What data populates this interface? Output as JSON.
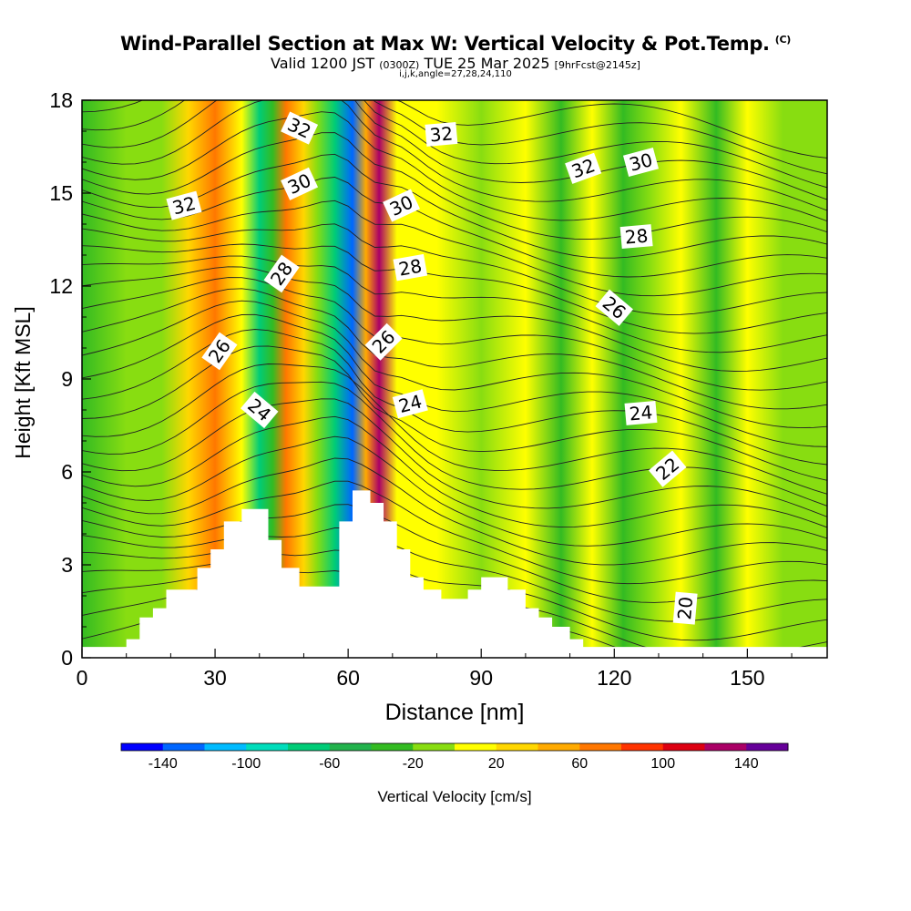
{
  "title": {
    "main": "Wind-Parallel Section at Max W: Vertical Velocity & Pot.Temp.",
    "copyright": "(C)",
    "valid_prefix": "Valid 1200 JST",
    "valid_utc": "(0300Z)",
    "valid_date": "TUE 25 Mar 2025",
    "forecast": "[9hrFcst@2145z]",
    "params": "i,j,k,angle=27,28,24,110"
  },
  "chart_data": {
    "type": "heatmap",
    "xlabel": "Distance [nm]",
    "ylabel": "Height [Kft MSL]",
    "xlim": [
      0,
      168
    ],
    "ylim": [
      0,
      18
    ],
    "x_ticks": [
      0,
      30,
      60,
      90,
      120,
      150
    ],
    "y_ticks": [
      0,
      3,
      6,
      9,
      12,
      15,
      18
    ],
    "colorbar": {
      "label": "Vertical Velocity [cm/s]",
      "ticks": [
        -140,
        -100,
        -60,
        -20,
        20,
        60,
        100,
        140
      ],
      "bounds": [
        -160,
        -140,
        -120,
        -100,
        -80,
        -60,
        -40,
        -20,
        0,
        20,
        40,
        60,
        80,
        100,
        120,
        140,
        160
      ],
      "colors": [
        "#0000ff",
        "#0066ff",
        "#00bbff",
        "#00ddbb",
        "#00cc77",
        "#22b24c",
        "#33bb22",
        "#88dd11",
        "#ffff00",
        "#ffd700",
        "#ffaa00",
        "#ff7700",
        "#ff3300",
        "#dd0011",
        "#aa0066",
        "#660099"
      ]
    },
    "vertical_velocity_bands": [
      {
        "x": 0,
        "w": -30
      },
      {
        "x": 10,
        "w": -10
      },
      {
        "x": 18,
        "w": -20
      },
      {
        "x": 24,
        "w": 30
      },
      {
        "x": 30,
        "w": 60
      },
      {
        "x": 36,
        "w": 10
      },
      {
        "x": 40,
        "w": -80
      },
      {
        "x": 43,
        "w": -30
      },
      {
        "x": 46,
        "w": 70
      },
      {
        "x": 50,
        "w": 20
      },
      {
        "x": 53,
        "w": -10
      },
      {
        "x": 57,
        "w": -70
      },
      {
        "x": 61,
        "w": -130
      },
      {
        "x": 64,
        "w": 40
      },
      {
        "x": 67,
        "w": 130
      },
      {
        "x": 71,
        "w": 10
      },
      {
        "x": 80,
        "w": 10
      },
      {
        "x": 90,
        "w": -10
      },
      {
        "x": 100,
        "w": 5
      },
      {
        "x": 108,
        "w": -25
      },
      {
        "x": 115,
        "w": 15
      },
      {
        "x": 122,
        "w": -30
      },
      {
        "x": 128,
        "w": -15
      },
      {
        "x": 135,
        "w": 5
      },
      {
        "x": 143,
        "w": -25
      },
      {
        "x": 150,
        "w": 15
      },
      {
        "x": 158,
        "w": -5
      },
      {
        "x": 168,
        "w": -10
      }
    ],
    "terrain_profile": [
      {
        "x": 0,
        "h": 0.35
      },
      {
        "x": 10,
        "h": 0.35
      },
      {
        "x": 10,
        "h": 0.6
      },
      {
        "x": 13,
        "h": 0.6
      },
      {
        "x": 13,
        "h": 1.3
      },
      {
        "x": 16,
        "h": 1.3
      },
      {
        "x": 16,
        "h": 1.6
      },
      {
        "x": 19,
        "h": 1.6
      },
      {
        "x": 19,
        "h": 2.2
      },
      {
        "x": 26,
        "h": 2.2
      },
      {
        "x": 26,
        "h": 2.9
      },
      {
        "x": 29,
        "h": 2.9
      },
      {
        "x": 29,
        "h": 3.5
      },
      {
        "x": 32,
        "h": 3.5
      },
      {
        "x": 32,
        "h": 4.4
      },
      {
        "x": 36,
        "h": 4.4
      },
      {
        "x": 36,
        "h": 4.8
      },
      {
        "x": 42,
        "h": 4.8
      },
      {
        "x": 42,
        "h": 3.8
      },
      {
        "x": 45,
        "h": 3.8
      },
      {
        "x": 45,
        "h": 2.9
      },
      {
        "x": 49,
        "h": 2.9
      },
      {
        "x": 49,
        "h": 2.3
      },
      {
        "x": 58,
        "h": 2.3
      },
      {
        "x": 58,
        "h": 4.4
      },
      {
        "x": 61,
        "h": 4.4
      },
      {
        "x": 61,
        "h": 5.4
      },
      {
        "x": 65,
        "h": 5.4
      },
      {
        "x": 65,
        "h": 5.0
      },
      {
        "x": 68,
        "h": 5.0
      },
      {
        "x": 68,
        "h": 4.4
      },
      {
        "x": 71,
        "h": 4.4
      },
      {
        "x": 71,
        "h": 3.5
      },
      {
        "x": 74,
        "h": 3.5
      },
      {
        "x": 74,
        "h": 2.6
      },
      {
        "x": 77,
        "h": 2.6
      },
      {
        "x": 77,
        "h": 2.2
      },
      {
        "x": 81,
        "h": 2.2
      },
      {
        "x": 81,
        "h": 1.9
      },
      {
        "x": 87,
        "h": 1.9
      },
      {
        "x": 87,
        "h": 2.2
      },
      {
        "x": 90,
        "h": 2.2
      },
      {
        "x": 90,
        "h": 2.6
      },
      {
        "x": 96,
        "h": 2.6
      },
      {
        "x": 96,
        "h": 2.2
      },
      {
        "x": 100,
        "h": 2.2
      },
      {
        "x": 100,
        "h": 1.6
      },
      {
        "x": 103,
        "h": 1.6
      },
      {
        "x": 103,
        "h": 1.3
      },
      {
        "x": 106,
        "h": 1.3
      },
      {
        "x": 106,
        "h": 1.0
      },
      {
        "x": 110,
        "h": 1.0
      },
      {
        "x": 110,
        "h": 0.6
      },
      {
        "x": 113,
        "h": 0.6
      },
      {
        "x": 113,
        "h": 0.35
      },
      {
        "x": 168,
        "h": 0.35
      }
    ],
    "potential_temperature_labels": [
      {
        "value": "32",
        "x": 49,
        "y": 17.1,
        "angle": 25
      },
      {
        "value": "32",
        "x": 81,
        "y": 16.9,
        "angle": -5
      },
      {
        "value": "32",
        "x": 113,
        "y": 15.8,
        "angle": -20
      },
      {
        "value": "30",
        "x": 126,
        "y": 16.0,
        "angle": -15
      },
      {
        "value": "32",
        "x": 23,
        "y": 14.6,
        "angle": -15
      },
      {
        "value": "30",
        "x": 49,
        "y": 15.3,
        "angle": -25
      },
      {
        "value": "30",
        "x": 72,
        "y": 14.6,
        "angle": -25
      },
      {
        "value": "28",
        "x": 125,
        "y": 13.6,
        "angle": -5
      },
      {
        "value": "28",
        "x": 45,
        "y": 12.4,
        "angle": -55
      },
      {
        "value": "28",
        "x": 74,
        "y": 12.6,
        "angle": -10
      },
      {
        "value": "26",
        "x": 120,
        "y": 11.3,
        "angle": 40
      },
      {
        "value": "26",
        "x": 31,
        "y": 9.9,
        "angle": -55
      },
      {
        "value": "26",
        "x": 68,
        "y": 10.2,
        "angle": -45
      },
      {
        "value": "24",
        "x": 40,
        "y": 8.0,
        "angle": 40
      },
      {
        "value": "24",
        "x": 74,
        "y": 8.2,
        "angle": -15
      },
      {
        "value": "24",
        "x": 126,
        "y": 7.9,
        "angle": -5
      },
      {
        "value": "22",
        "x": 132,
        "y": 6.1,
        "angle": -40
      },
      {
        "value": "20",
        "x": 136,
        "y": 1.6,
        "angle": -85
      }
    ]
  }
}
